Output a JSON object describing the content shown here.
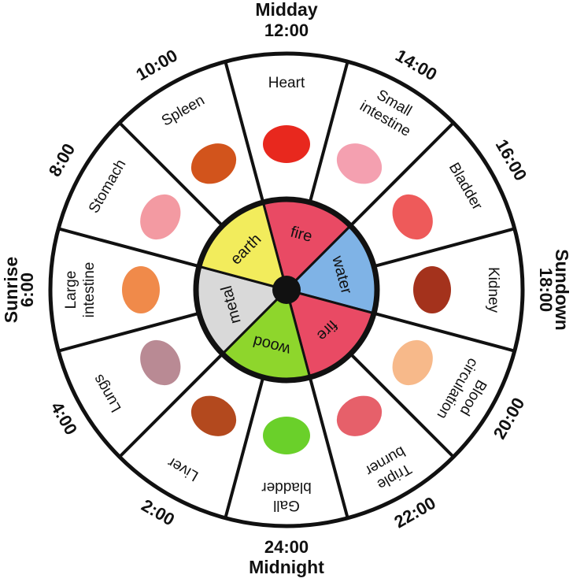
{
  "headings": {
    "top": "Midday",
    "bottom": "Midnight",
    "left": "Sunrise",
    "right": "Sundown"
  },
  "sectors": [
    {
      "time": "12:00",
      "organ": [
        "Heart"
      ]
    },
    {
      "time": "14:00",
      "organ": [
        "Small",
        "intestine"
      ]
    },
    {
      "time": "16:00",
      "organ": [
        "Bladder"
      ]
    },
    {
      "time": "18:00",
      "organ": [
        "Kidney"
      ]
    },
    {
      "time": "20:00",
      "organ": [
        "Blood",
        "circulation"
      ]
    },
    {
      "time": "22:00",
      "organ": [
        "Triple",
        "burner"
      ]
    },
    {
      "time": "24:00",
      "organ": [
        "Gall",
        "bladder"
      ]
    },
    {
      "time": "2:00",
      "organ": [
        "Liver"
      ]
    },
    {
      "time": "4:00",
      "organ": [
        "Lungs"
      ]
    },
    {
      "time": "6:00",
      "organ": [
        "Large",
        "intestine"
      ]
    },
    {
      "time": "8:00",
      "organ": [
        "Stomach"
      ]
    },
    {
      "time": "10:00",
      "organ": [
        "Spleen"
      ]
    }
  ],
  "elements": [
    "fire",
    "water",
    "fire",
    "wood",
    "metal",
    "earth"
  ]
}
